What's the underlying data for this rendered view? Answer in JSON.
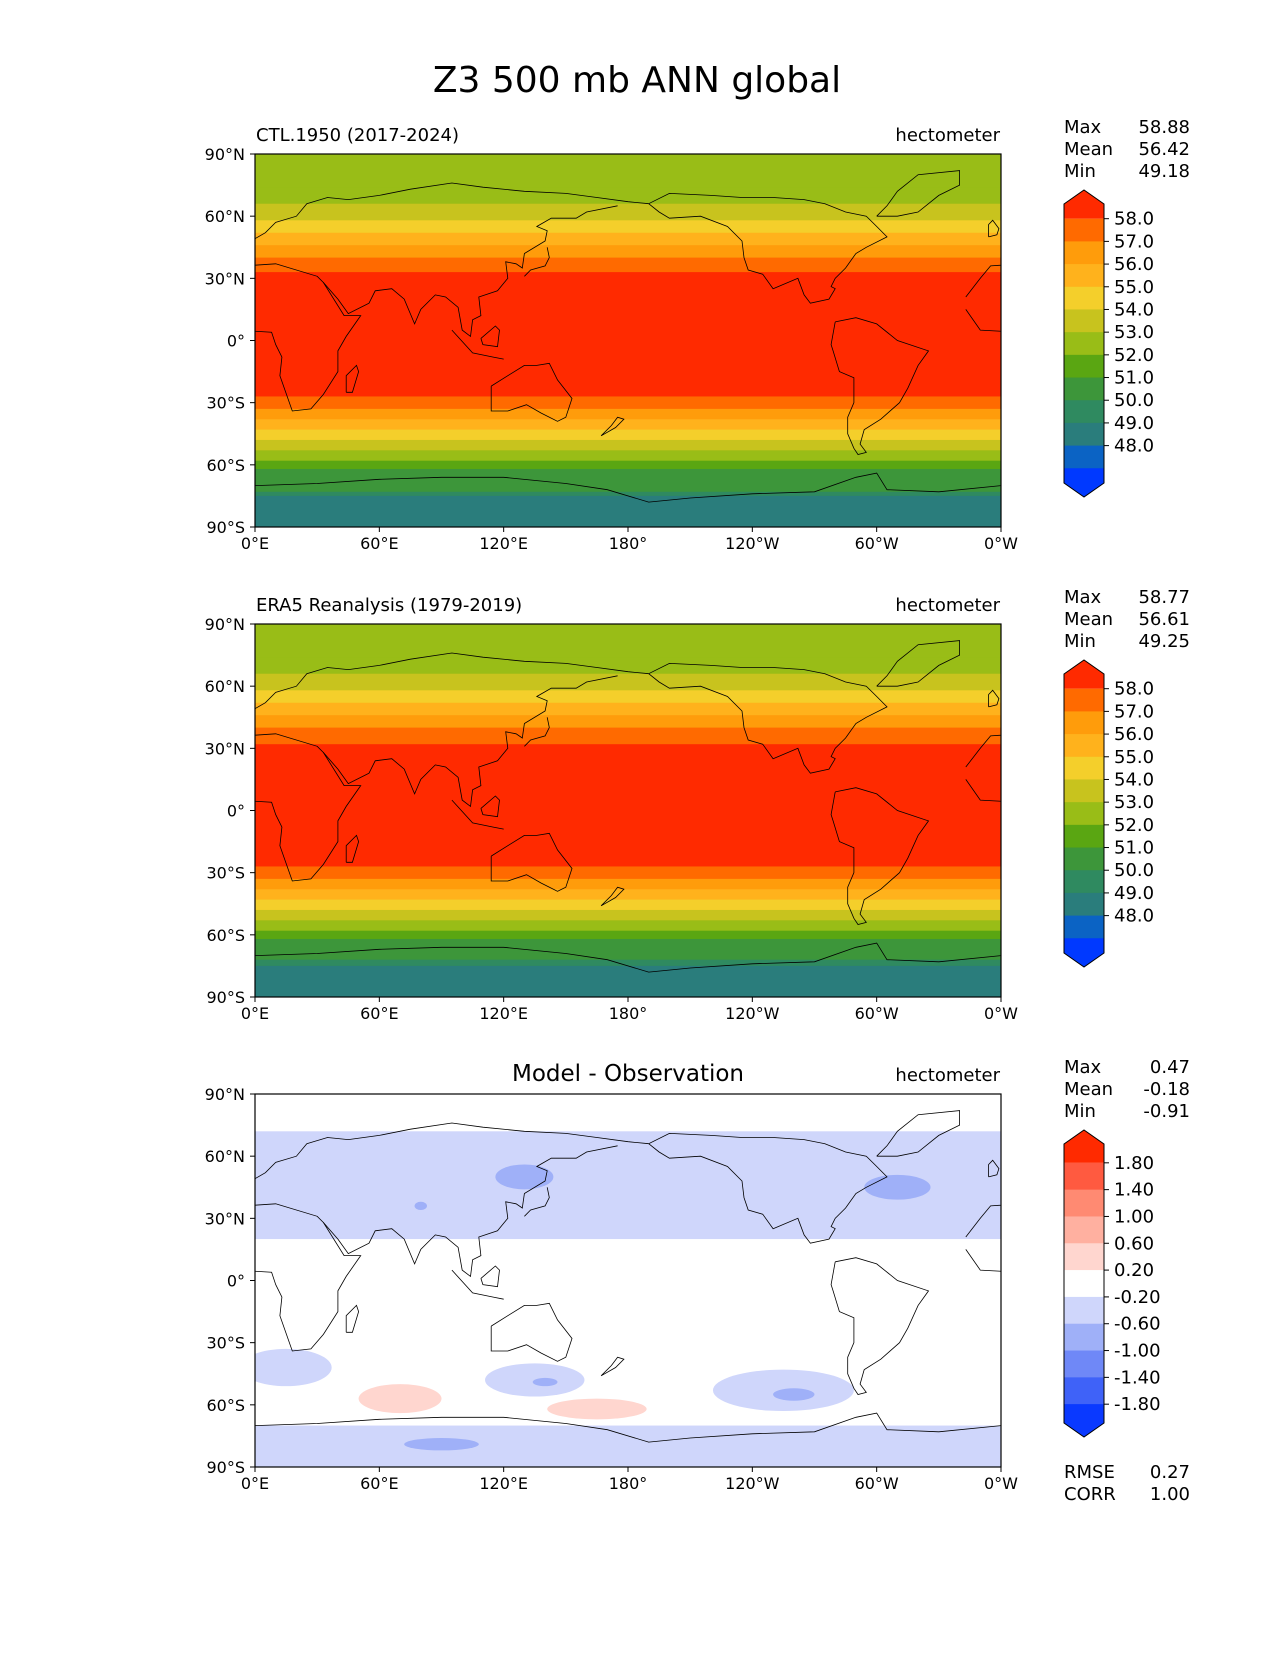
{
  "figure_title": "Z3 500 mb ANN global",
  "xticks": [
    "0°E",
    "60°E",
    "120°E",
    "180°",
    "120°W",
    "60°W",
    "0°W"
  ],
  "yticks": [
    "90°N",
    "60°N",
    "30°N",
    "0°",
    "30°S",
    "60°S",
    "90°S"
  ],
  "panels": [
    {
      "id": "model",
      "title_left": "CTL.1950 (2017-2024)",
      "title_center": "",
      "units": "hectometer",
      "stats": [
        {
          "label": "Max",
          "value": "58.88"
        },
        {
          "label": "Mean",
          "value": "56.42"
        },
        {
          "label": "Min",
          "value": "49.18"
        }
      ],
      "cbar_levels": [
        "58.0",
        "57.0",
        "56.0",
        "55.0",
        "54.0",
        "53.0",
        "52.0",
        "51.0",
        "50.0",
        "49.0",
        "48.0"
      ],
      "cbar_colors": [
        "#ff2a00",
        "#ff6a00",
        "#ff9c0b",
        "#ffb21c",
        "#f4cf2b",
        "#c8c31e",
        "#99bd17",
        "#5aa612",
        "#3d963a",
        "#2f8a60",
        "#2a7d7c",
        "#0b63c4",
        "#0039ff"
      ],
      "bands_deg": [
        {
          "lat0": 90,
          "lat1": 74,
          "color": "#99bd17"
        },
        {
          "lat0": 74,
          "lat1": 66,
          "color": "#99bd17"
        },
        {
          "lat0": 66,
          "lat1": 58,
          "color": "#c8c31e"
        },
        {
          "lat0": 58,
          "lat1": 52,
          "color": "#f4cf2b"
        },
        {
          "lat0": 52,
          "lat1": 46,
          "color": "#ffb21c"
        },
        {
          "lat0": 46,
          "lat1": 40,
          "color": "#ff9c0b"
        },
        {
          "lat0": 40,
          "lat1": 33,
          "color": "#ff6a00"
        },
        {
          "lat0": 33,
          "lat1": -27,
          "color": "#ff2a00"
        },
        {
          "lat0": -27,
          "lat1": -33,
          "color": "#ff6a00"
        },
        {
          "lat0": -33,
          "lat1": -38,
          "color": "#ff9c0b"
        },
        {
          "lat0": -38,
          "lat1": -43,
          "color": "#ffb21c"
        },
        {
          "lat0": -43,
          "lat1": -48,
          "color": "#f4cf2b"
        },
        {
          "lat0": -48,
          "lat1": -53,
          "color": "#c8c31e"
        },
        {
          "lat0": -53,
          "lat1": -58,
          "color": "#99bd17"
        },
        {
          "lat0": -58,
          "lat1": -62,
          "color": "#5aa612"
        },
        {
          "lat0": -62,
          "lat1": -73,
          "color": "#3d963a"
        },
        {
          "lat0": -73,
          "lat1": -90,
          "color": "#2f8a60"
        }
      ]
    },
    {
      "id": "obs",
      "title_left": "ERA5 Reanalysis (1979-2019)",
      "title_center": "",
      "units": "hectometer",
      "stats": [
        {
          "label": "Max",
          "value": "58.77"
        },
        {
          "label": "Mean",
          "value": "56.61"
        },
        {
          "label": "Min",
          "value": "49.25"
        }
      ],
      "cbar_levels": [
        "58.0",
        "57.0",
        "56.0",
        "55.0",
        "54.0",
        "53.0",
        "52.0",
        "51.0",
        "50.0",
        "49.0",
        "48.0"
      ],
      "cbar_colors": [
        "#ff2a00",
        "#ff6a00",
        "#ff9c0b",
        "#ffb21c",
        "#f4cf2b",
        "#c8c31e",
        "#99bd17",
        "#5aa612",
        "#3d963a",
        "#2f8a60",
        "#2a7d7c",
        "#0b63c4",
        "#0039ff"
      ],
      "bands_deg": [
        {
          "lat0": 90,
          "lat1": 74,
          "color": "#99bd17"
        },
        {
          "lat0": 74,
          "lat1": 66,
          "color": "#99bd17"
        },
        {
          "lat0": 66,
          "lat1": 58,
          "color": "#c8c31e"
        },
        {
          "lat0": 58,
          "lat1": 52,
          "color": "#f4cf2b"
        },
        {
          "lat0": 52,
          "lat1": 46,
          "color": "#ffb21c"
        },
        {
          "lat0": 46,
          "lat1": 40,
          "color": "#ff9c0b"
        },
        {
          "lat0": 40,
          "lat1": 32,
          "color": "#ff6a00"
        },
        {
          "lat0": 32,
          "lat1": -27,
          "color": "#ff2a00"
        },
        {
          "lat0": -27,
          "lat1": -33,
          "color": "#ff6a00"
        },
        {
          "lat0": -33,
          "lat1": -38,
          "color": "#ff9c0b"
        },
        {
          "lat0": -38,
          "lat1": -43,
          "color": "#ffb21c"
        },
        {
          "lat0": -43,
          "lat1": -48,
          "color": "#f4cf2b"
        },
        {
          "lat0": -48,
          "lat1": -53,
          "color": "#c8c31e"
        },
        {
          "lat0": -53,
          "lat1": -58,
          "color": "#99bd17"
        },
        {
          "lat0": -58,
          "lat1": -62,
          "color": "#5aa612"
        },
        {
          "lat0": -62,
          "lat1": -72,
          "color": "#3d963a"
        },
        {
          "lat0": -72,
          "lat1": -90,
          "color": "#2f8a60"
        }
      ]
    },
    {
      "id": "diff",
      "title_left": "",
      "title_center": "Model - Observation",
      "units": "hectometer",
      "stats": [
        {
          "label": "Max",
          "value": "0.47"
        },
        {
          "label": "Mean",
          "value": "-0.18"
        },
        {
          "label": "Min",
          "value": "-0.91"
        }
      ],
      "cbar_levels": [
        "1.80",
        "1.40",
        "1.00",
        "0.60",
        "0.20",
        "-0.20",
        "-0.60",
        "-1.00",
        "-1.40",
        "-1.80"
      ],
      "cbar_colors": [
        "#ff2a00",
        "#ff5a40",
        "#ff8a72",
        "#ffb0a0",
        "#ffd6cf",
        "#ffffff",
        "#cfd6fb",
        "#9fb0f8",
        "#6f88f7",
        "#3f62f8",
        "#0a39ff"
      ],
      "bands_deg": [
        {
          "lat0": 90,
          "lat1": 72,
          "color": "#ffffff"
        },
        {
          "lat0": 72,
          "lat1": 20,
          "color": "#cfd6fb"
        },
        {
          "lat0": 20,
          "lat1": -58,
          "color": "#ffffff"
        },
        {
          "lat0": -58,
          "lat1": -70,
          "color": "#ffffff"
        },
        {
          "lat0": -70,
          "lat1": -90,
          "color": "#cfd6fb"
        }
      ],
      "footer_stats": [
        {
          "label": "RMSE",
          "value": "0.27"
        },
        {
          "label": "CORR",
          "value": "1.00"
        }
      ]
    }
  ]
}
